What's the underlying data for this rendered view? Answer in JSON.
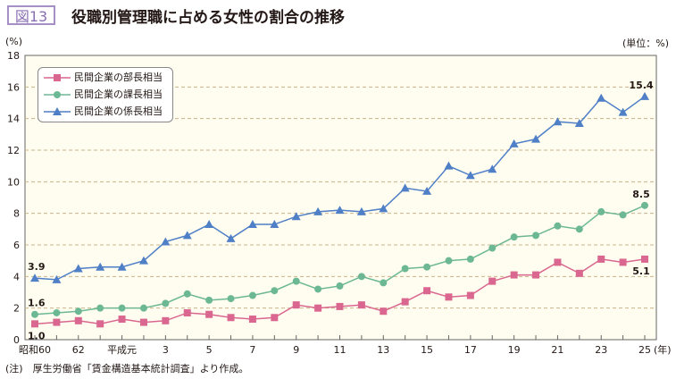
{
  "figure_label": "図13",
  "chart_data": {
    "type": "line",
    "title": "役職別管理職に占める女性の割合の推移",
    "ylabel": "(%)",
    "xlabel": "(年)",
    "unit_note": "(単位：%)",
    "ylim": [
      0,
      18
    ],
    "yticks": [
      0,
      2,
      4,
      6,
      8,
      10,
      12,
      14,
      16,
      18
    ],
    "grid": true,
    "legend_position": "top-left",
    "categories": [
      "昭和60",
      "61",
      "62",
      "63",
      "平成元",
      "2",
      "3",
      "4",
      "5",
      "6",
      "7",
      "8",
      "9",
      "10",
      "11",
      "12",
      "13",
      "14",
      "15",
      "16",
      "17",
      "18",
      "19",
      "20",
      "21",
      "22",
      "23",
      "24",
      "25"
    ],
    "tick_labels": [
      "昭和60",
      "",
      "62",
      "",
      "平成元",
      "",
      "3",
      "",
      "5",
      "",
      "7",
      "",
      "9",
      "",
      "11",
      "",
      "13",
      "",
      "15",
      "",
      "17",
      "",
      "19",
      "",
      "21",
      "",
      "23",
      "",
      "25"
    ],
    "series": [
      {
        "name": "民間企業の部長相当",
        "color": "#d9678f",
        "marker": "square",
        "values": [
          1.0,
          1.1,
          1.2,
          1.0,
          1.3,
          1.1,
          1.2,
          1.7,
          1.6,
          1.4,
          1.3,
          1.4,
          2.2,
          2.0,
          2.1,
          2.2,
          1.8,
          2.4,
          3.1,
          2.7,
          2.8,
          3.7,
          4.1,
          4.1,
          4.9,
          4.2,
          5.1,
          4.9,
          5.1
        ],
        "data_labels": {
          "0": "1.0",
          "28": "5.1"
        }
      },
      {
        "name": "民間企業の課長相当",
        "color": "#6db894",
        "marker": "circle",
        "values": [
          1.6,
          1.7,
          1.8,
          2.0,
          2.0,
          2.0,
          2.3,
          2.9,
          2.5,
          2.6,
          2.8,
          3.1,
          3.7,
          3.2,
          3.4,
          4.0,
          3.6,
          4.5,
          4.6,
          5.0,
          5.1,
          5.8,
          6.5,
          6.6,
          7.2,
          7.0,
          8.1,
          7.9,
          8.5
        ],
        "data_labels": {
          "0": "1.6",
          "28": "8.5"
        }
      },
      {
        "name": "民間企業の係長相当",
        "color": "#4f7fc6",
        "marker": "triangle",
        "values": [
          3.9,
          3.8,
          4.5,
          4.6,
          4.6,
          5.0,
          6.2,
          6.6,
          7.3,
          6.4,
          7.3,
          7.3,
          7.8,
          8.1,
          8.2,
          8.1,
          8.3,
          9.6,
          9.4,
          11.0,
          10.4,
          10.8,
          12.4,
          12.7,
          13.8,
          13.7,
          15.3,
          14.4,
          15.4
        ],
        "data_labels": {
          "0": "3.9",
          "28": "15.4"
        }
      }
    ],
    "plot_background": "#fffdf0",
    "grid_color": "#c9b48a"
  },
  "note": "(注)　厚生労働省「賃金構造基本統計調査」より作成。"
}
